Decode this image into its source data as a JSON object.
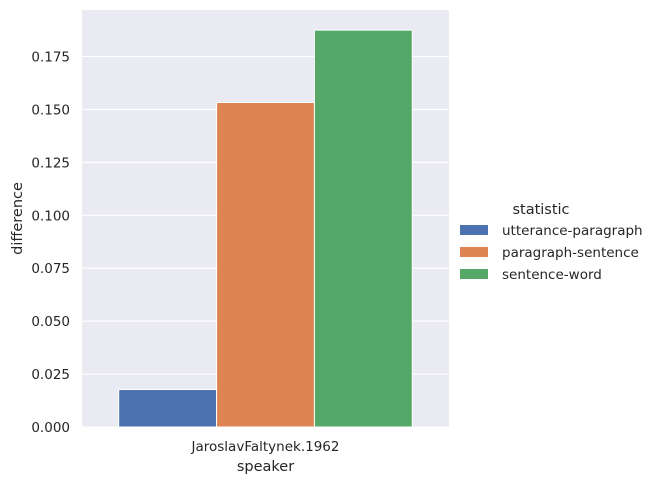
{
  "chart_data": {
    "type": "bar",
    "categories": [
      "JaroslavFaltynek.1962"
    ],
    "series": [
      {
        "name": "utterance-paragraph",
        "color": "#4c72b0",
        "values": [
          0.0177
        ]
      },
      {
        "name": "paragraph-sentence",
        "color": "#dd8452",
        "values": [
          0.1533
        ]
      },
      {
        "name": "sentence-word",
        "color": "#55a868",
        "values": [
          0.1875
        ]
      }
    ],
    "xlabel": "speaker",
    "ylabel": "difference",
    "ylim": [
      0,
      0.197
    ],
    "yticks": [
      0.0,
      0.025,
      0.05,
      0.075,
      0.1,
      0.125,
      0.15,
      0.175
    ],
    "ytick_labels": [
      "0.000",
      "0.025",
      "0.050",
      "0.075",
      "0.100",
      "0.125",
      "0.150",
      "0.175"
    ],
    "legend": {
      "title": "statistic",
      "position": "right"
    },
    "grid": true,
    "background_color": "#eaeaf2",
    "grid_color": "#ffffff"
  }
}
